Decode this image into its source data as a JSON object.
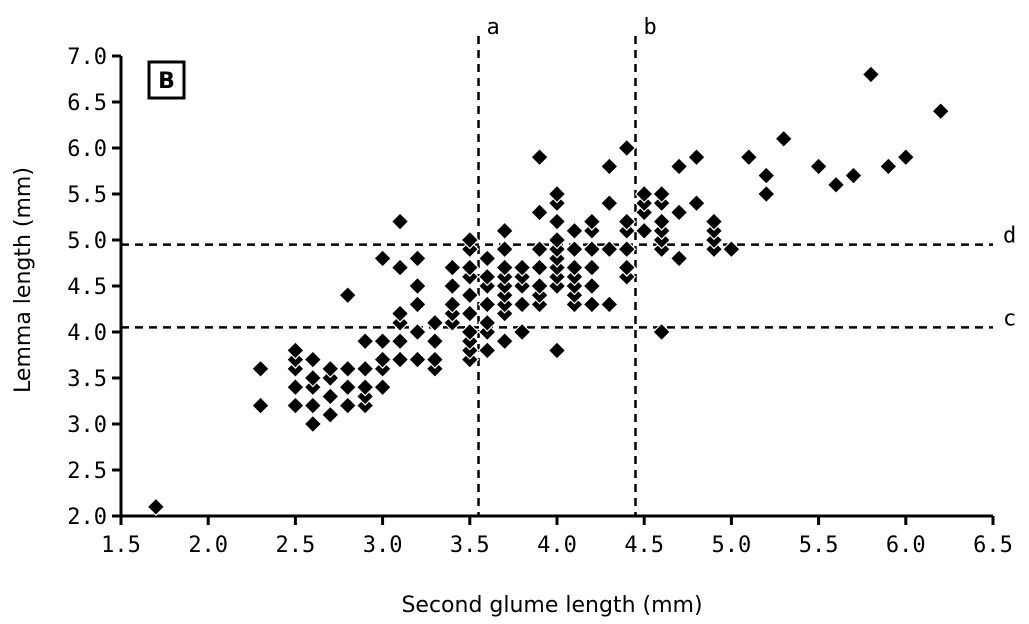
{
  "chart_data": {
    "type": "scatter",
    "panel_label": "B",
    "xlabel": "Second glume length (mm)",
    "ylabel": "Lemma length (mm)",
    "xlim": [
      1.5,
      6.5
    ],
    "ylim": [
      2.0,
      7.0
    ],
    "xticks": [
      "1.5",
      "2.0",
      "2.5",
      "3.0",
      "3.5",
      "4.0",
      "4.5",
      "5.0",
      "5.5",
      "6.0",
      "6.5"
    ],
    "yticks": [
      "2.0",
      "2.5",
      "3.0",
      "3.5",
      "4.0",
      "4.5",
      "5.0",
      "5.5",
      "6.0",
      "6.5",
      "7.0"
    ],
    "grid": false,
    "reference_lines": [
      {
        "label": "a",
        "orientation": "vertical",
        "value": 3.55
      },
      {
        "label": "b",
        "orientation": "vertical",
        "value": 4.45
      },
      {
        "label": "c",
        "orientation": "horizontal",
        "value": 4.05
      },
      {
        "label": "d",
        "orientation": "horizontal",
        "value": 4.95
      }
    ],
    "points": [
      [
        1.7,
        2.1
      ],
      [
        2.3,
        3.2
      ],
      [
        2.3,
        3.6
      ],
      [
        2.5,
        3.2
      ],
      [
        2.5,
        3.4
      ],
      [
        2.5,
        3.6
      ],
      [
        2.5,
        3.7
      ],
      [
        2.5,
        3.8
      ],
      [
        2.6,
        3.0
      ],
      [
        2.6,
        3.2
      ],
      [
        2.6,
        3.4
      ],
      [
        2.6,
        3.5
      ],
      [
        2.6,
        3.7
      ],
      [
        2.7,
        3.1
      ],
      [
        2.7,
        3.3
      ],
      [
        2.7,
        3.5
      ],
      [
        2.7,
        3.6
      ],
      [
        2.8,
        3.2
      ],
      [
        2.8,
        3.4
      ],
      [
        2.8,
        3.6
      ],
      [
        2.8,
        4.4
      ],
      [
        2.9,
        3.2
      ],
      [
        2.9,
        3.3
      ],
      [
        2.9,
        3.4
      ],
      [
        2.9,
        3.6
      ],
      [
        2.9,
        3.9
      ],
      [
        3.0,
        3.4
      ],
      [
        3.0,
        3.6
      ],
      [
        3.0,
        3.7
      ],
      [
        3.0,
        3.9
      ],
      [
        3.0,
        4.8
      ],
      [
        3.1,
        3.7
      ],
      [
        3.1,
        3.9
      ],
      [
        3.1,
        4.1
      ],
      [
        3.1,
        4.2
      ],
      [
        3.1,
        4.7
      ],
      [
        3.1,
        5.2
      ],
      [
        3.2,
        3.7
      ],
      [
        3.2,
        4.0
      ],
      [
        3.2,
        4.3
      ],
      [
        3.2,
        4.5
      ],
      [
        3.2,
        4.8
      ],
      [
        3.3,
        3.6
      ],
      [
        3.3,
        3.7
      ],
      [
        3.3,
        3.9
      ],
      [
        3.3,
        4.1
      ],
      [
        3.4,
        4.1
      ],
      [
        3.4,
        4.2
      ],
      [
        3.4,
        4.3
      ],
      [
        3.4,
        4.5
      ],
      [
        3.4,
        4.7
      ],
      [
        3.5,
        3.7
      ],
      [
        3.5,
        3.8
      ],
      [
        3.5,
        3.9
      ],
      [
        3.5,
        4.0
      ],
      [
        3.5,
        4.2
      ],
      [
        3.5,
        4.4
      ],
      [
        3.5,
        4.6
      ],
      [
        3.5,
        4.7
      ],
      [
        3.5,
        4.9
      ],
      [
        3.5,
        5.0
      ],
      [
        3.6,
        3.8
      ],
      [
        3.6,
        4.0
      ],
      [
        3.6,
        4.1
      ],
      [
        3.6,
        4.3
      ],
      [
        3.6,
        4.5
      ],
      [
        3.6,
        4.6
      ],
      [
        3.6,
        4.8
      ],
      [
        3.7,
        3.9
      ],
      [
        3.7,
        4.2
      ],
      [
        3.7,
        4.3
      ],
      [
        3.7,
        4.4
      ],
      [
        3.7,
        4.5
      ],
      [
        3.7,
        4.6
      ],
      [
        3.7,
        4.7
      ],
      [
        3.7,
        4.9
      ],
      [
        3.7,
        5.1
      ],
      [
        3.8,
        4.0
      ],
      [
        3.8,
        4.3
      ],
      [
        3.8,
        4.5
      ],
      [
        3.8,
        4.6
      ],
      [
        3.8,
        4.7
      ],
      [
        3.9,
        4.3
      ],
      [
        3.9,
        4.4
      ],
      [
        3.9,
        4.5
      ],
      [
        3.9,
        4.7
      ],
      [
        3.9,
        4.9
      ],
      [
        3.9,
        5.3
      ],
      [
        3.9,
        5.9
      ],
      [
        4.0,
        3.8
      ],
      [
        4.0,
        4.5
      ],
      [
        4.0,
        4.6
      ],
      [
        4.0,
        4.7
      ],
      [
        4.0,
        4.8
      ],
      [
        4.0,
        4.9
      ],
      [
        4.0,
        5.0
      ],
      [
        4.0,
        5.2
      ],
      [
        4.0,
        5.4
      ],
      [
        4.0,
        5.5
      ],
      [
        4.1,
        4.3
      ],
      [
        4.1,
        4.4
      ],
      [
        4.1,
        4.5
      ],
      [
        4.1,
        4.6
      ],
      [
        4.1,
        4.7
      ],
      [
        4.1,
        4.9
      ],
      [
        4.1,
        5.1
      ],
      [
        4.2,
        4.3
      ],
      [
        4.2,
        4.5
      ],
      [
        4.2,
        4.7
      ],
      [
        4.2,
        4.9
      ],
      [
        4.2,
        5.1
      ],
      [
        4.2,
        5.2
      ],
      [
        4.3,
        4.3
      ],
      [
        4.3,
        4.9
      ],
      [
        4.3,
        5.4
      ],
      [
        4.3,
        5.8
      ],
      [
        4.4,
        4.6
      ],
      [
        4.4,
        4.7
      ],
      [
        4.4,
        4.9
      ],
      [
        4.4,
        5.1
      ],
      [
        4.4,
        5.2
      ],
      [
        4.4,
        6.0
      ],
      [
        4.5,
        5.1
      ],
      [
        4.5,
        5.3
      ],
      [
        4.5,
        5.4
      ],
      [
        4.5,
        5.5
      ],
      [
        4.6,
        4.0
      ],
      [
        4.6,
        4.9
      ],
      [
        4.6,
        5.0
      ],
      [
        4.6,
        5.1
      ],
      [
        4.6,
        5.2
      ],
      [
        4.6,
        5.4
      ],
      [
        4.6,
        5.5
      ],
      [
        4.7,
        4.8
      ],
      [
        4.7,
        5.3
      ],
      [
        4.7,
        5.8
      ],
      [
        4.8,
        5.4
      ],
      [
        4.8,
        5.9
      ],
      [
        4.9,
        4.9
      ],
      [
        4.9,
        5.0
      ],
      [
        4.9,
        5.1
      ],
      [
        4.9,
        5.2
      ],
      [
        5.0,
        4.9
      ],
      [
        5.1,
        5.9
      ],
      [
        5.2,
        5.5
      ],
      [
        5.2,
        5.7
      ],
      [
        5.3,
        6.1
      ],
      [
        5.5,
        5.8
      ],
      [
        5.6,
        5.6
      ],
      [
        5.7,
        5.7
      ],
      [
        5.8,
        6.8
      ],
      [
        5.9,
        5.8
      ],
      [
        6.0,
        5.9
      ],
      [
        6.2,
        6.4
      ]
    ]
  }
}
